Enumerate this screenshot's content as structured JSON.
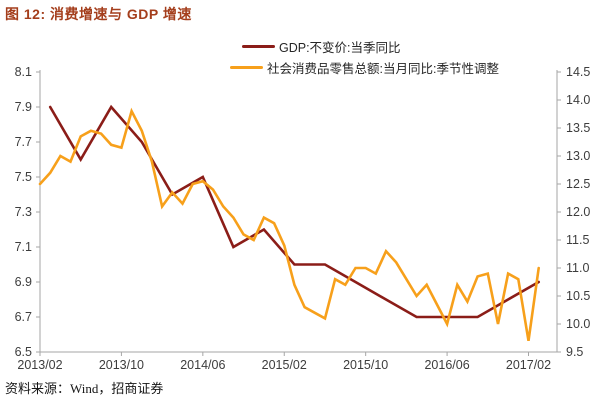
{
  "title": "图 12: 消费增速与 GDP 增速",
  "legend": [
    {
      "label": "GDP:不变价:当季同比",
      "color": "#8b1d18"
    },
    {
      "label": "社会消费品零售总额:当月同比:季节性调整",
      "color": "#f7a01b"
    }
  ],
  "source": "资料来源：Wind，招商证券",
  "colors": {
    "gdp_line": "#8b1d18",
    "retail_line": "#f7a01b",
    "axis": "#a6a6a6",
    "tick_label": "#3d3d3d",
    "title": "#a43e1c"
  },
  "chart_data": {
    "type": "line",
    "title": "消费增速与 GDP 增速",
    "grid": false,
    "legend_position": "top",
    "x_ticks": [
      "2013/02",
      "2013/10",
      "2014/06",
      "2015/02",
      "2015/10",
      "2016/06",
      "2017/02"
    ],
    "left_axis": {
      "min": 6.5,
      "max": 8.1,
      "step": 0.2,
      "tick_labels": [
        "8.1",
        "7.9",
        "7.7",
        "7.5",
        "7.3",
        "7.1",
        "6.9",
        "6.7",
        "6.5"
      ]
    },
    "right_axis": {
      "min": 9.5,
      "max": 14.5,
      "step": 0.5,
      "tick_labels": [
        "14.5",
        "14.0",
        "13.5",
        "13.0",
        "12.5",
        "12.0",
        "11.5",
        "11.0",
        "10.5",
        "10.0",
        "9.5"
      ]
    },
    "series": [
      {
        "name": "GDP:不变价:当季同比",
        "axis": "left",
        "color": "#8b1d18",
        "x": [
          "2013/03",
          "2013/06",
          "2013/09",
          "2013/12",
          "2014/03",
          "2014/06",
          "2014/09",
          "2014/12",
          "2015/03",
          "2015/06",
          "2015/09",
          "2015/12",
          "2016/03",
          "2016/06",
          "2016/09",
          "2016/12",
          "2017/03"
        ],
        "values": [
          7.9,
          7.6,
          7.9,
          7.7,
          7.4,
          7.5,
          7.1,
          7.2,
          7.0,
          7.0,
          6.9,
          6.8,
          6.7,
          6.7,
          6.7,
          6.8,
          6.9
        ]
      },
      {
        "name": "社会消费品零售总额:当月同比:季节性调整",
        "axis": "right",
        "color": "#f7a01b",
        "x": [
          "2013/02",
          "2013/03",
          "2013/04",
          "2013/05",
          "2013/06",
          "2013/07",
          "2013/08",
          "2013/09",
          "2013/10",
          "2013/11",
          "2013/12",
          "2014/01",
          "2014/02",
          "2014/03",
          "2014/04",
          "2014/05",
          "2014/06",
          "2014/07",
          "2014/08",
          "2014/09",
          "2014/10",
          "2014/11",
          "2014/12",
          "2015/01",
          "2015/02",
          "2015/03",
          "2015/04",
          "2015/05",
          "2015/06",
          "2015/07",
          "2015/08",
          "2015/09",
          "2015/10",
          "2015/11",
          "2015/12",
          "2016/01",
          "2016/02",
          "2016/03",
          "2016/04",
          "2016/05",
          "2016/06",
          "2016/07",
          "2016/08",
          "2016/09",
          "2016/10",
          "2016/11",
          "2016/12",
          "2017/01",
          "2017/02",
          "2017/03"
        ],
        "values": [
          12.5,
          12.7,
          13.0,
          12.9,
          13.35,
          13.45,
          13.4,
          13.2,
          13.15,
          13.8,
          13.45,
          12.9,
          12.1,
          12.35,
          12.15,
          12.5,
          12.55,
          12.4,
          12.1,
          11.9,
          11.6,
          11.5,
          11.9,
          11.8,
          11.4,
          10.7,
          10.3,
          10.2,
          10.1,
          10.8,
          10.7,
          11.0,
          11.0,
          10.9,
          11.3,
          11.1,
          10.8,
          10.5,
          10.7,
          10.35,
          10.0,
          10.7,
          10.4,
          10.85,
          10.9,
          10.0,
          10.9,
          10.8,
          9.7,
          11.0
        ]
      }
    ]
  }
}
